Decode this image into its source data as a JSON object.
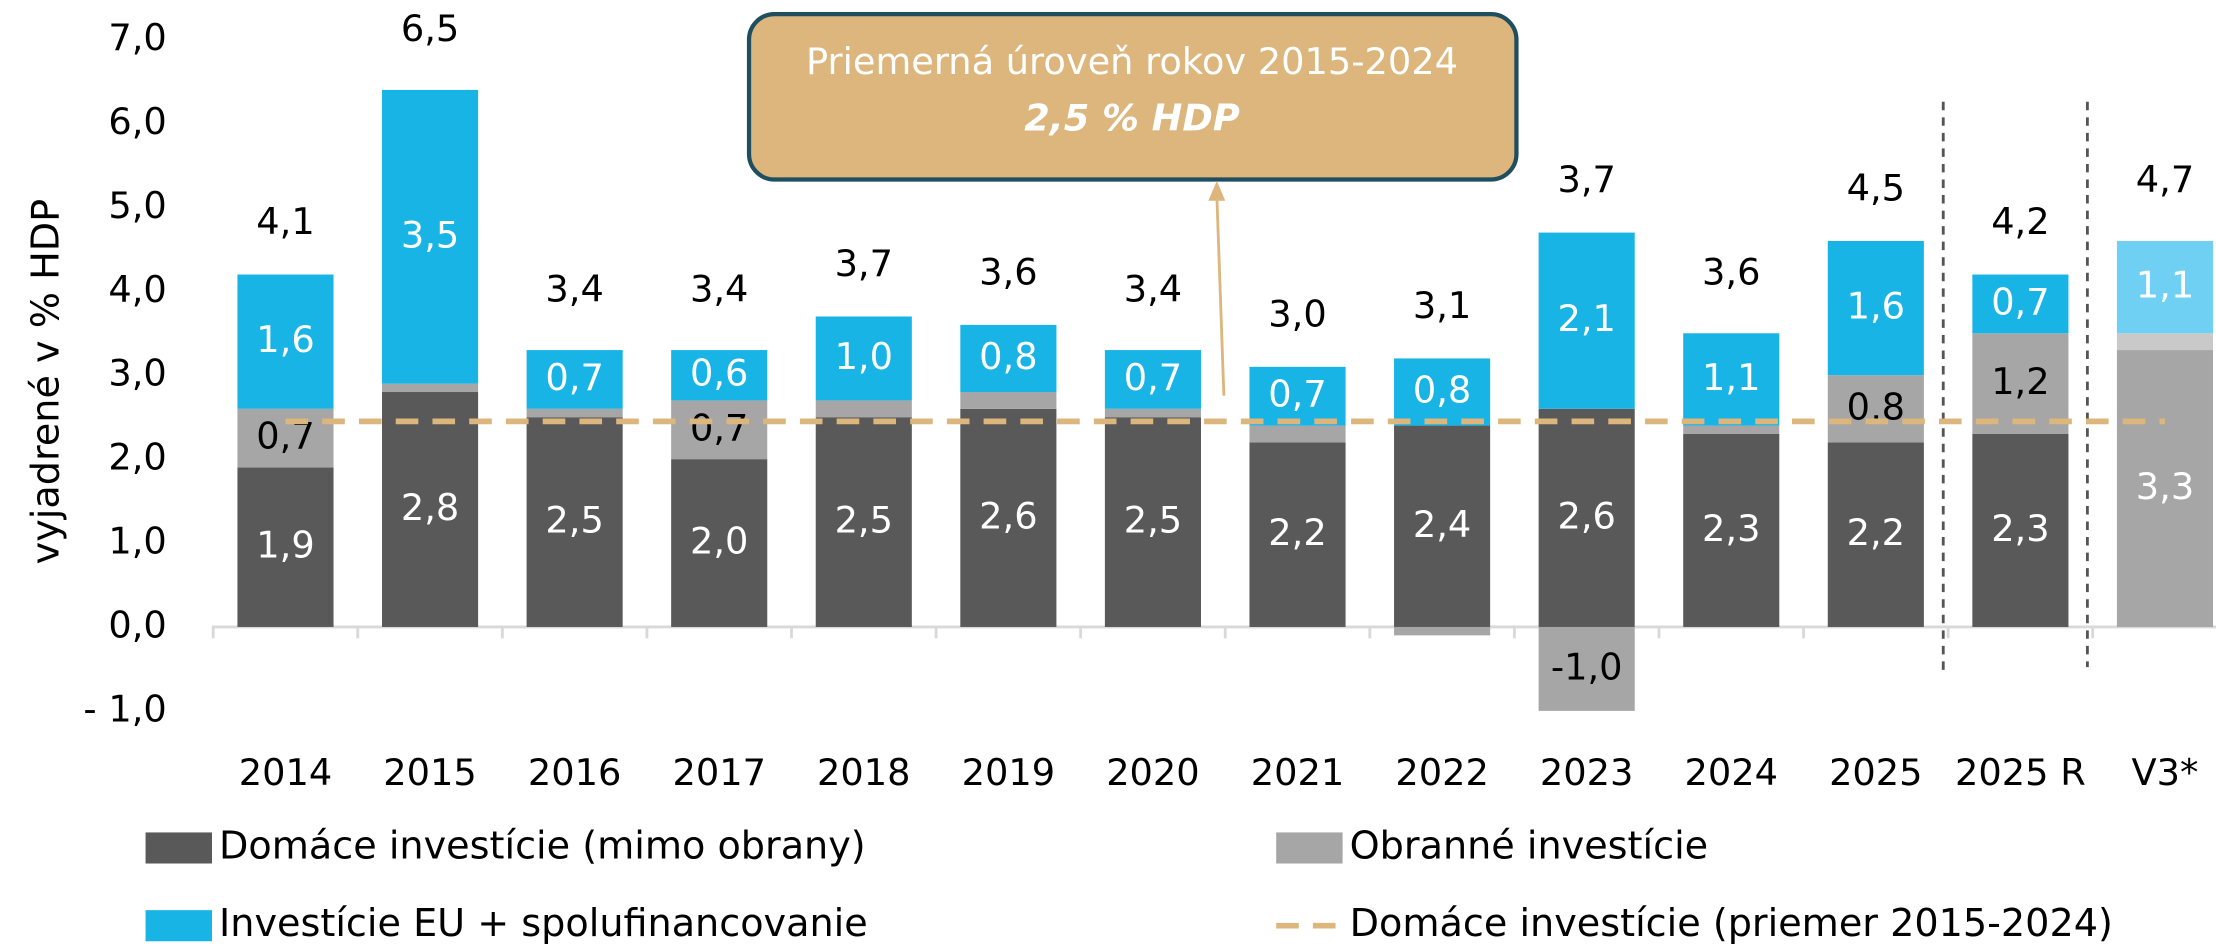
{
  "chart_data": {
    "type": "stacked_bar",
    "y_axis_label": "vyjadrené v % HDP",
    "categories": [
      "2014",
      "2015",
      "2016",
      "2017",
      "2018",
      "2019",
      "2020",
      "2021",
      "2022",
      "2023",
      "2024",
      "2025",
      "2025 R",
      "V3*"
    ],
    "series": [
      {
        "name": "Domáce investície (mimo obrany)",
        "color": "#595959",
        "label_color": "#ffffff",
        "colors": [
          "#595959",
          "#595959",
          "#595959",
          "#595959",
          "#595959",
          "#595959",
          "#595959",
          "#595959",
          "#595959",
          "#595959",
          "#595959",
          "#595959",
          "#595959",
          "#a6a6a6"
        ],
        "values": [
          1.9,
          2.8,
          2.5,
          2.0,
          2.5,
          2.6,
          2.5,
          2.2,
          2.4,
          2.6,
          2.3,
          2.2,
          2.3,
          3.3
        ],
        "value_labels": [
          "1,9",
          "2,8",
          "2,5",
          "2,0",
          "2,5",
          "2,6",
          "2,5",
          "2,2",
          "2,4",
          "2,6",
          "2,3",
          "2,2",
          "2,3",
          "3,3"
        ]
      },
      {
        "name": "Obranné investície",
        "color": "#a6a6a6",
        "label_color": "#000000",
        "colors": [
          "#a6a6a6",
          "#a6a6a6",
          "#a6a6a6",
          "#a6a6a6",
          "#a6a6a6",
          "#a6a6a6",
          "#a6a6a6",
          "#a6a6a6",
          "#a6a6a6",
          "#a6a6a6",
          "#a6a6a6",
          "#a6a6a6",
          "#a6a6a6",
          "#c9c9c9"
        ],
        "values": [
          0.7,
          0.1,
          0.1,
          0.7,
          0.2,
          0.2,
          0.1,
          0.2,
          -0.1,
          -1.0,
          0.1,
          0.8,
          1.2,
          0.2
        ],
        "value_labels": [
          "0,7",
          null,
          null,
          "0,7",
          null,
          null,
          null,
          null,
          null,
          "-1,0",
          null,
          "0,8",
          "1,2",
          null
        ]
      },
      {
        "name": "Investície EU + spolufinancovanie",
        "color": "#19b4e6",
        "label_color": "#ffffff",
        "colors": [
          "#19b4e6",
          "#19b4e6",
          "#19b4e6",
          "#19b4e6",
          "#19b4e6",
          "#19b4e6",
          "#19b4e6",
          "#19b4e6",
          "#19b4e6",
          "#19b4e6",
          "#19b4e6",
          "#19b4e6",
          "#19b4e6",
          "#6fd0f3"
        ],
        "values": [
          1.6,
          3.5,
          0.7,
          0.6,
          1.0,
          0.8,
          0.7,
          0.7,
          0.8,
          2.1,
          1.1,
          1.6,
          0.7,
          1.1
        ],
        "value_labels": [
          "1,6",
          "3,5",
          "0,7",
          "0,6",
          "1,0",
          "0,8",
          "0,7",
          "0,7",
          "0,8",
          "2,1",
          "1,1",
          "1,6",
          "0,7",
          "1,1"
        ]
      }
    ],
    "totals": [
      4.1,
      6.5,
      3.4,
      3.4,
      3.7,
      3.6,
      3.4,
      3.0,
      3.1,
      3.7,
      3.6,
      4.5,
      4.2,
      4.7
    ],
    "total_labels": [
      "4,1",
      "6,5",
      "3,4",
      "3,4",
      "3,7",
      "3,6",
      "3,4",
      "3,0",
      "3,1",
      "3,7",
      "3,6",
      "4,5",
      "4,2",
      "4,7"
    ],
    "reference_line": {
      "name": "Domáce investície (priemer 2015-2024)",
      "value": 2.45,
      "color": "#dcb67c"
    },
    "annotation": {
      "text": "Priemerná úroveň rokov 2015-2024",
      "highlight": "2,5 % HDP"
    },
    "ylim": [
      -1,
      7
    ],
    "yticks": [
      {
        "value": -1,
        "label": "- 1,0"
      },
      {
        "value": 0,
        "label": "0,0"
      },
      {
        "value": 1,
        "label": "1,0"
      },
      {
        "value": 2,
        "label": "2,0"
      },
      {
        "value": 3,
        "label": "3,0"
      },
      {
        "value": 4,
        "label": "4,0"
      },
      {
        "value": 5,
        "label": "5,0"
      },
      {
        "value": 6,
        "label": "6,0"
      },
      {
        "value": 7,
        "label": "7,0"
      }
    ],
    "grid": false
  }
}
